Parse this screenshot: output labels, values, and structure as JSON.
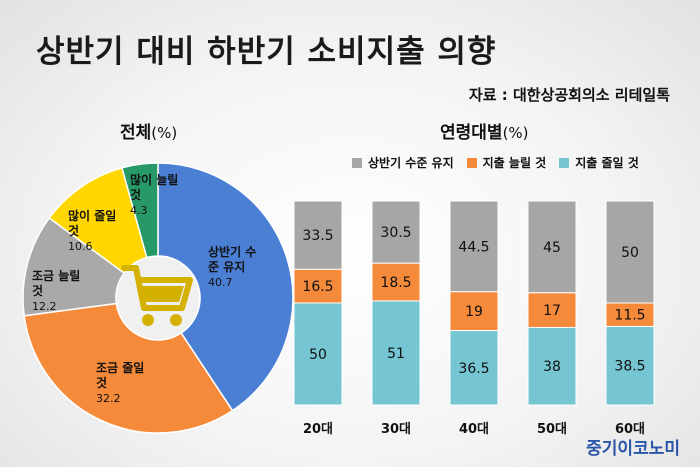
{
  "header": {
    "title": "상반기 대비 하반기 소비지출 의향",
    "source": "자료 : 대한상공회의소 리테일톡"
  },
  "pie": {
    "title": "전체",
    "unit": "(%)"
  },
  "bars": {
    "title": "연령대별",
    "unit": "(%)"
  },
  "legend": {
    "items": [
      "상반기 수준 유지",
      "지출 늘릴 것",
      "지출 줄일 것"
    ]
  },
  "icons": {
    "center": "shopping-cart-icon"
  },
  "watermark": "중기이코노미",
  "colors": {
    "maintain": "#a6a6a6",
    "increase": "#f58a3b",
    "decrease": "#76c5d3",
    "pie_maintain": "#4a7fd4",
    "pie_cut_little": "#f58a3b",
    "pie_inc_little": "#a9a9a9",
    "pie_inc_much": "#ffd600",
    "pie_cut_much_green": "#279867",
    "cart": "#d4b000"
  },
  "chart_data": [
    {
      "type": "pie",
      "title": "전체",
      "unit": "(%)",
      "slices": [
        {
          "label": "상반기 수준 유지",
          "value": 40.7
        },
        {
          "label": "조금 줄일 것",
          "value": 32.2
        },
        {
          "label": "조금 늘릴 것",
          "value": 12.2
        },
        {
          "label": "많이 줄일 것",
          "value": 10.6
        },
        {
          "label": "많이 늘릴 것",
          "value": 4.3
        }
      ]
    },
    {
      "type": "bar",
      "stacked": true,
      "title": "연령대별",
      "unit": "(%)",
      "categories": [
        "20대",
        "30대",
        "40대",
        "50대",
        "60대"
      ],
      "series": [
        {
          "name": "상반기 수준 유지",
          "values": [
            33.5,
            30.5,
            44.5,
            45,
            50
          ]
        },
        {
          "name": "지출 늘릴 것",
          "values": [
            16.5,
            18.5,
            19,
            17,
            11.5
          ]
        },
        {
          "name": "지출 줄일 것",
          "values": [
            50,
            51,
            36.5,
            38,
            38.5
          ]
        }
      ],
      "legend": "top"
    }
  ]
}
